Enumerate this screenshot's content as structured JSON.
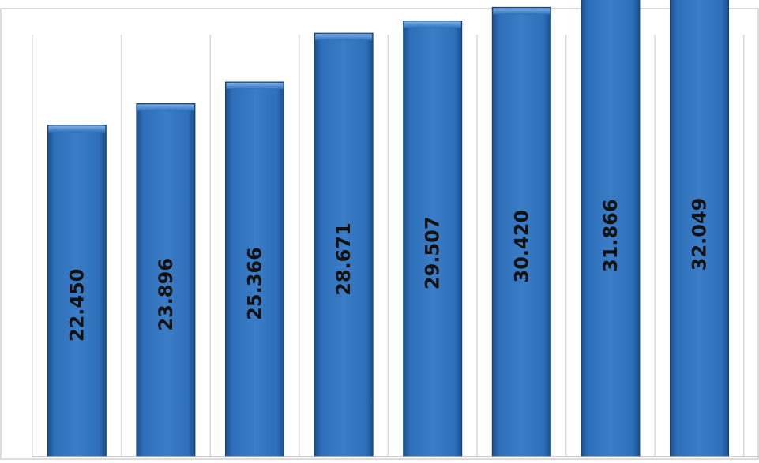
{
  "chart_data": {
    "type": "bar",
    "categories": [
      "",
      "",
      "",
      "",
      "",
      "",
      "",
      ""
    ],
    "values": [
      22.45,
      23.896,
      25.366,
      28.671,
      29.507,
      30.42,
      31.866,
      32.049
    ],
    "data_labels": [
      "22.450",
      "23.896",
      "25.366",
      "28.671",
      "29.507",
      "30.420",
      "31.866",
      "32.049"
    ],
    "title": "",
    "xlabel": "",
    "ylabel": "",
    "ylim": [
      0,
      40
    ],
    "grid": "vertical",
    "legend": "none",
    "label_orientation": "vertical",
    "colors": {
      "bar": "#2e6fba",
      "bar_light": "#5b95d6",
      "bar_dark": "#1c4f8c",
      "bar_edge": "#163e70",
      "label": "#111111",
      "grid": "#d9d9d9",
      "frame": "#d0d0d0",
      "baseline": "#bfbfbf"
    }
  }
}
